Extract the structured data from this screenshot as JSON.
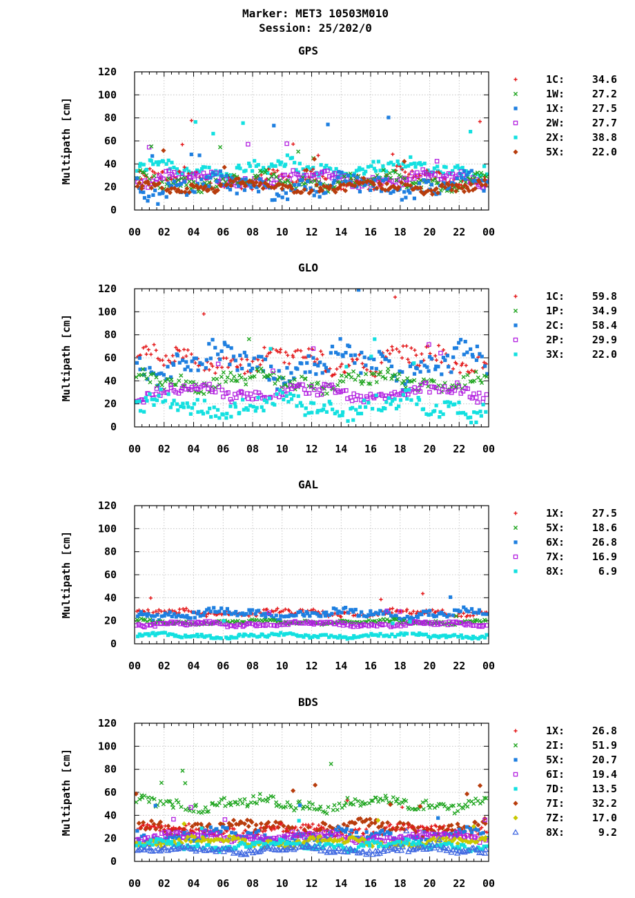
{
  "header": {
    "line1": "Marker: MET3 10503M010",
    "line2": "Session: 25/202/0"
  },
  "chart_data": [
    {
      "type": "scatter",
      "title": "GPS",
      "ylabel": "Multipath [cm]",
      "ylim": [
        0,
        120
      ],
      "yticks": [
        "0",
        "20",
        "40",
        "60",
        "80",
        "100",
        "120"
      ],
      "xticks": [
        "00",
        "02",
        "04",
        "06",
        "08",
        "10",
        "12",
        "14",
        "16",
        "18",
        "20",
        "22",
        "00"
      ],
      "grid": true,
      "legend_position": "right",
      "series": [
        {
          "name": "1C",
          "value": "34.6",
          "color": "#e41a1c",
          "marker": "plus",
          "center": 27,
          "spread": 8
        },
        {
          "name": "1W",
          "value": "27.2",
          "color": "#1fa51f",
          "marker": "cross",
          "center": 25,
          "spread": 7
        },
        {
          "name": "1X",
          "value": "27.5",
          "color": "#1e7fe0",
          "marker": "square",
          "center": 20,
          "spread": 10
        },
        {
          "name": "2W",
          "value": "27.7",
          "color": "#b21fe0",
          "marker": "open-square",
          "center": 27,
          "spread": 6
        },
        {
          "name": "2X",
          "value": "38.8",
          "color": "#13e0e0",
          "marker": "square",
          "center": 36,
          "spread": 8
        },
        {
          "name": "5X",
          "value": "22.0",
          "color": "#b83c0c",
          "marker": "diamond",
          "center": 20,
          "spread": 5
        }
      ]
    },
    {
      "type": "scatter",
      "title": "GLO",
      "ylabel": "Multipath [cm]",
      "ylim": [
        0,
        120
      ],
      "yticks": [
        "0",
        "20",
        "40",
        "60",
        "80",
        "100",
        "120"
      ],
      "xticks": [
        "00",
        "02",
        "04",
        "06",
        "08",
        "10",
        "12",
        "14",
        "16",
        "18",
        "20",
        "22",
        "00"
      ],
      "grid": true,
      "legend_position": "right",
      "series": [
        {
          "name": "1C",
          "value": "59.8",
          "color": "#e41a1c",
          "marker": "plus",
          "center": 58,
          "spread": 12
        },
        {
          "name": "1P",
          "value": "34.9",
          "color": "#1fa51f",
          "marker": "cross",
          "center": 40,
          "spread": 8
        },
        {
          "name": "2C",
          "value": "58.4",
          "color": "#1e7fe0",
          "marker": "square",
          "center": 55,
          "spread": 15
        },
        {
          "name": "2P",
          "value": "29.9",
          "color": "#b21fe0",
          "marker": "open-square",
          "center": 30,
          "spread": 7
        },
        {
          "name": "3X",
          "value": "22.0",
          "color": "#13e0e0",
          "marker": "square",
          "center": 18,
          "spread": 10
        }
      ]
    },
    {
      "type": "scatter",
      "title": "GAL",
      "ylabel": "Multipath [cm]",
      "ylim": [
        0,
        120
      ],
      "yticks": [
        "0",
        "20",
        "40",
        "60",
        "80",
        "100",
        "120"
      ],
      "xticks": [
        "00",
        "02",
        "04",
        "06",
        "08",
        "10",
        "12",
        "14",
        "16",
        "18",
        "20",
        "22",
        "00"
      ],
      "grid": true,
      "legend_position": "right",
      "series": [
        {
          "name": "1X",
          "value": "27.5",
          "color": "#e41a1c",
          "marker": "plus",
          "center": 27,
          "spread": 3
        },
        {
          "name": "5X",
          "value": "18.6",
          "color": "#1fa51f",
          "marker": "cross",
          "center": 19,
          "spread": 2
        },
        {
          "name": "6X",
          "value": "26.8",
          "color": "#1e7fe0",
          "marker": "square",
          "center": 26,
          "spread": 4
        },
        {
          "name": "7X",
          "value": "16.9",
          "color": "#b21fe0",
          "marker": "open-square",
          "center": 17,
          "spread": 2
        },
        {
          "name": "8X",
          "value": "6.9",
          "color": "#13e0e0",
          "marker": "square",
          "center": 7,
          "spread": 2
        }
      ]
    },
    {
      "type": "scatter",
      "title": "BDS",
      "ylabel": "Multipath [cm]",
      "ylim": [
        0,
        120
      ],
      "yticks": [
        "0",
        "20",
        "40",
        "60",
        "80",
        "100",
        "120"
      ],
      "xticks": [
        "00",
        "02",
        "04",
        "06",
        "08",
        "10",
        "12",
        "14",
        "16",
        "18",
        "20",
        "22",
        "00"
      ],
      "grid": true,
      "legend_position": "right",
      "series": [
        {
          "name": "1X",
          "value": "26.8",
          "color": "#e41a1c",
          "marker": "plus",
          "center": 27,
          "spread": 5
        },
        {
          "name": "2I",
          "value": "51.9",
          "color": "#1fa51f",
          "marker": "cross",
          "center": 50,
          "spread": 6
        },
        {
          "name": "5X",
          "value": "20.7",
          "color": "#1e7fe0",
          "marker": "square",
          "center": 22,
          "spread": 6
        },
        {
          "name": "6I",
          "value": "19.4",
          "color": "#b21fe0",
          "marker": "open-square",
          "center": 21,
          "spread": 4
        },
        {
          "name": "7D",
          "value": "13.5",
          "color": "#13e0e0",
          "marker": "square",
          "center": 14,
          "spread": 4
        },
        {
          "name": "7I",
          "value": "32.2",
          "color": "#b83c0c",
          "marker": "diamond",
          "center": 30,
          "spread": 6
        },
        {
          "name": "7Z",
          "value": "17.0",
          "color": "#c8c800",
          "marker": "diamond",
          "center": 17,
          "spread": 4
        },
        {
          "name": "8X",
          "value": "9.2",
          "color": "#4169e1",
          "marker": "open-triangle",
          "center": 10,
          "spread": 3
        }
      ]
    }
  ]
}
